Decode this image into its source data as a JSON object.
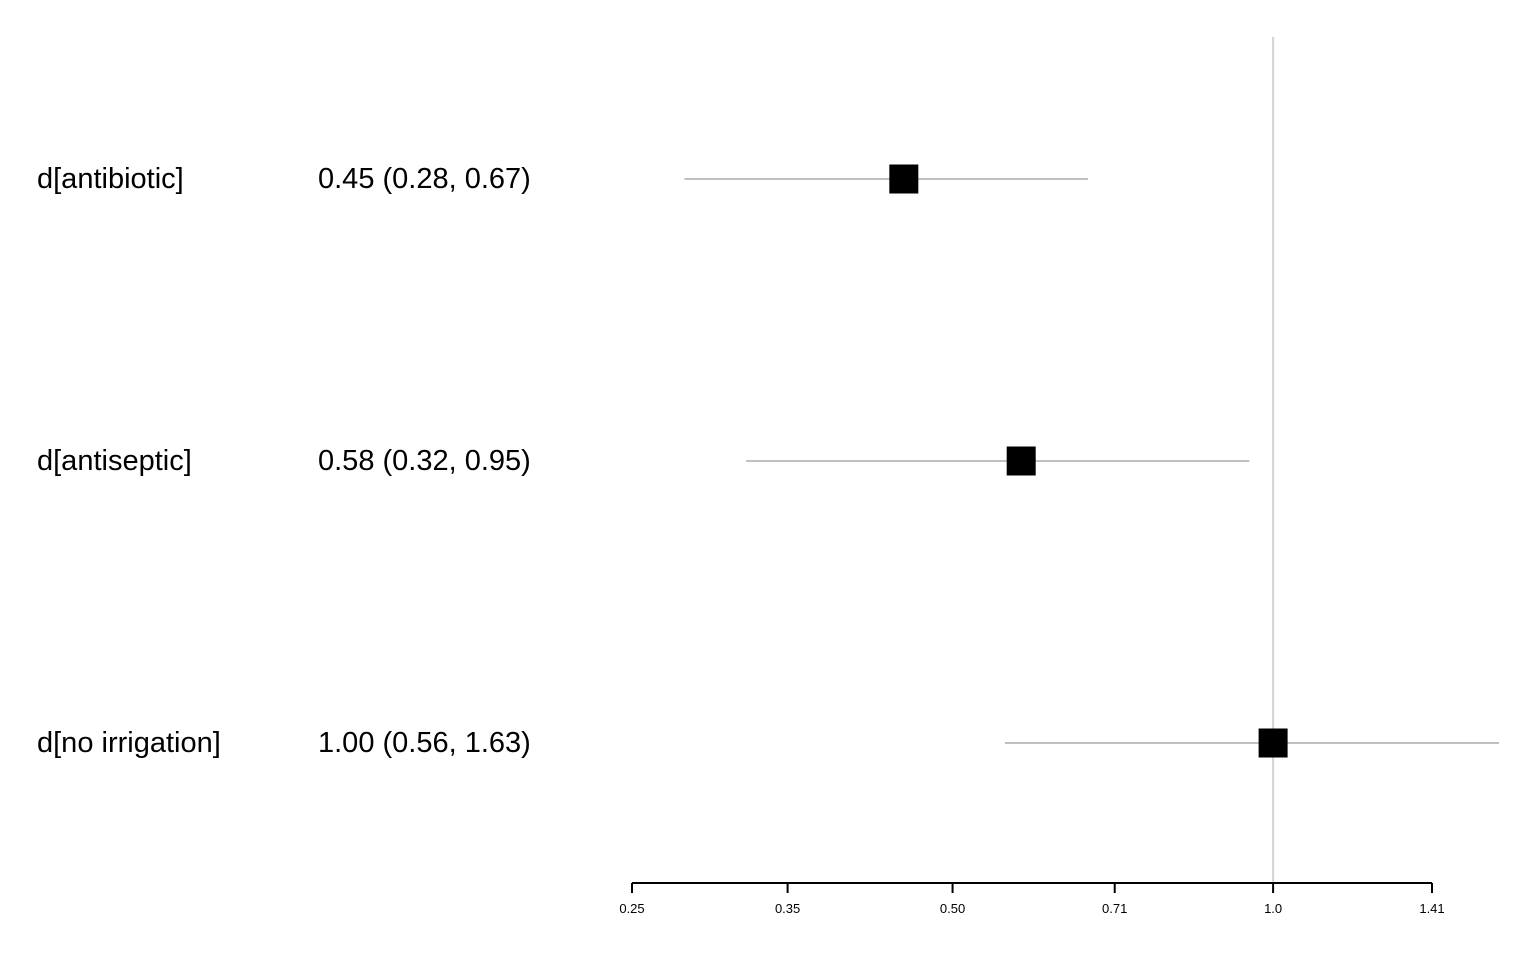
{
  "chart_data": {
    "type": "forest",
    "x_scale": "log",
    "xlim": [
      0.25,
      1.41
    ],
    "x_ticks": [
      0.25,
      0.35,
      0.5,
      0.71,
      1.0,
      1.41
    ],
    "x_tick_labels": [
      "0.25",
      "0.35",
      "0.50",
      "0.71",
      "1.0",
      "1.41"
    ],
    "reference_line": 1.0,
    "grid": false,
    "rows": [
      {
        "label": "d[antibiotic]",
        "estimate_text": "0.45 (0.28, 0.67)",
        "value": 0.45,
        "lower": 0.28,
        "upper": 0.67
      },
      {
        "label": "d[antiseptic]",
        "estimate_text": "0.58 (0.32, 0.95)",
        "value": 0.58,
        "lower": 0.32,
        "upper": 0.95
      },
      {
        "label": "d[no irrigation]",
        "estimate_text": "1.00 (0.56, 1.63)",
        "value": 1.0,
        "lower": 0.56,
        "upper": 1.63
      }
    ],
    "colors": {
      "point": "#000000",
      "ci_line": "#c0c0c0",
      "reference_line": "#d3d3d3",
      "axis": "#000000"
    }
  }
}
